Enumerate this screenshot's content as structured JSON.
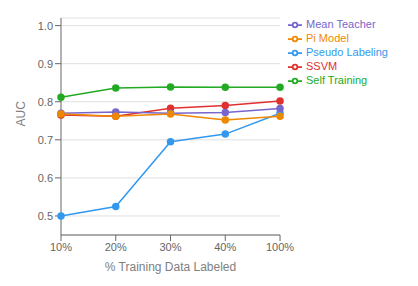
{
  "chart_data": {
    "type": "line",
    "title": "",
    "xlabel": "% Training Data Labeled",
    "ylabel": "AUC",
    "categories": [
      "10%",
      "20%",
      "30%",
      "40%",
      "100%"
    ],
    "series": [
      {
        "name": "SSVM",
        "color": "#e03030",
        "marker": "o",
        "values": [
          0.765,
          0.762,
          0.783,
          0.79,
          0.802
        ]
      },
      {
        "name": "Self Training",
        "color": "#22aa22",
        "marker": "o",
        "values": [
          0.812,
          0.836,
          0.839,
          0.838,
          0.838
        ]
      },
      {
        "name": "Pseudo Labeling",
        "color": "#3399ee",
        "marker": "o",
        "values": [
          0.5,
          0.525,
          0.695,
          0.715,
          0.77
        ]
      },
      {
        "name": "Mean Teacher",
        "color": "#7766cc",
        "marker": "o",
        "values": [
          0.77,
          0.773,
          0.77,
          0.772,
          0.782
        ]
      },
      {
        "name": "Pi Model",
        "color": "#ee8800",
        "marker": "o",
        "values": [
          0.768,
          0.762,
          0.768,
          0.752,
          0.762
        ]
      }
    ],
    "ylim": [
      0.45,
      1.02
    ],
    "yticks": [
      0.5,
      0.6,
      0.7,
      0.8,
      0.9,
      {
        "value": 1.0,
        "label": "1.0"
      }
    ],
    "grid": true,
    "legend": "upper right"
  }
}
